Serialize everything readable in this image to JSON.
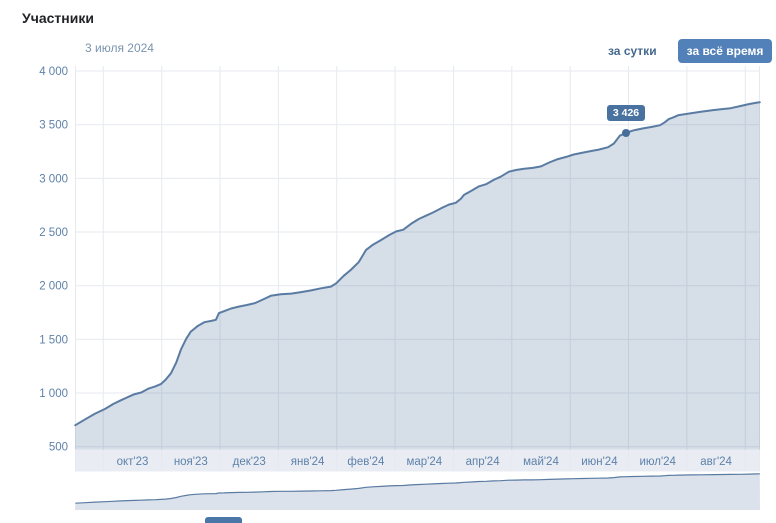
{
  "header": {
    "title": "Участники"
  },
  "controls": {
    "hover_date": "3 июля 2024",
    "range_day_label": "за сутки",
    "range_all_label": "за всё время",
    "selected_range": "за всё время"
  },
  "colors": {
    "accent_button": "#5181b8",
    "line": "#5a7ba2",
    "area_fill": "rgba(90,123,162,0.25)",
    "minimap_fill": "rgba(90,123,162,0.22)",
    "axis_label": "#5e81a9",
    "grid": "#e6e9ef",
    "strip_bg": "#e9edf3",
    "tooltip_bg": "#4a72a0",
    "date_label": "#7b93af",
    "link": "#45688e"
  },
  "chart_data": {
    "type": "area",
    "title": "Участники",
    "legend": [
      "Участники"
    ],
    "x_axis": {
      "tick_labels": [
        "окт'23",
        "ноя'23",
        "дек'23",
        "янв'24",
        "фев'24",
        "мар'24",
        "апр'24",
        "май'24",
        "июн'24",
        "июл'24",
        "авг'24"
      ],
      "unit": "t = months since 1 Oct 2023",
      "range_t": [
        -0.48,
        11.25
      ],
      "grid": true
    },
    "y_axis": {
      "ticks": [
        4000,
        3500,
        3000,
        2500,
        2000,
        1500,
        1000,
        500
      ],
      "tick_labels": [
        "4 000",
        "3 500",
        "3 000",
        "2 500",
        "2 000",
        "1 500",
        "1 000",
        "500"
      ],
      "range": [
        450,
        4000
      ],
      "grid": true
    },
    "series": [
      {
        "name": "Участники",
        "points": [
          [
            -0.48,
            700
          ],
          [
            -0.31,
            755
          ],
          [
            -0.14,
            808
          ],
          [
            0.03,
            852
          ],
          [
            0.17,
            898
          ],
          [
            0.3,
            932
          ],
          [
            0.42,
            962
          ],
          [
            0.54,
            990
          ],
          [
            0.65,
            1005
          ],
          [
            0.77,
            1040
          ],
          [
            0.89,
            1062
          ],
          [
            0.99,
            1085
          ],
          [
            1.07,
            1125
          ],
          [
            1.16,
            1185
          ],
          [
            1.25,
            1285
          ],
          [
            1.33,
            1405
          ],
          [
            1.42,
            1505
          ],
          [
            1.5,
            1572
          ],
          [
            1.61,
            1622
          ],
          [
            1.73,
            1660
          ],
          [
            1.85,
            1672
          ],
          [
            1.93,
            1682
          ],
          [
            1.98,
            1745
          ],
          [
            2.07,
            1762
          ],
          [
            2.19,
            1788
          ],
          [
            2.33,
            1806
          ],
          [
            2.46,
            1820
          ],
          [
            2.6,
            1838
          ],
          [
            2.74,
            1872
          ],
          [
            2.87,
            1906
          ],
          [
            3.04,
            1920
          ],
          [
            3.22,
            1926
          ],
          [
            3.39,
            1940
          ],
          [
            3.56,
            1956
          ],
          [
            3.73,
            1976
          ],
          [
            3.9,
            1992
          ],
          [
            3.99,
            2022
          ],
          [
            4.12,
            2092
          ],
          [
            4.24,
            2146
          ],
          [
            4.38,
            2222
          ],
          [
            4.5,
            2332
          ],
          [
            4.62,
            2382
          ],
          [
            4.76,
            2426
          ],
          [
            4.9,
            2472
          ],
          [
            5.02,
            2506
          ],
          [
            5.14,
            2522
          ],
          [
            5.27,
            2576
          ],
          [
            5.41,
            2622
          ],
          [
            5.53,
            2652
          ],
          [
            5.65,
            2682
          ],
          [
            5.79,
            2722
          ],
          [
            5.92,
            2756
          ],
          [
            6.04,
            2772
          ],
          [
            6.13,
            2812
          ],
          [
            6.18,
            2846
          ],
          [
            6.3,
            2882
          ],
          [
            6.44,
            2926
          ],
          [
            6.56,
            2946
          ],
          [
            6.69,
            2986
          ],
          [
            6.81,
            3016
          ],
          [
            6.95,
            3062
          ],
          [
            7.07,
            3078
          ],
          [
            7.21,
            3090
          ],
          [
            7.36,
            3098
          ],
          [
            7.5,
            3112
          ],
          [
            7.64,
            3148
          ],
          [
            7.79,
            3180
          ],
          [
            7.93,
            3200
          ],
          [
            8.06,
            3222
          ],
          [
            8.22,
            3240
          ],
          [
            8.36,
            3255
          ],
          [
            8.49,
            3268
          ],
          [
            8.65,
            3290
          ],
          [
            8.75,
            3325
          ],
          [
            8.85,
            3398
          ],
          [
            8.96,
            3426
          ],
          [
            9.09,
            3448
          ],
          [
            9.25,
            3466
          ],
          [
            9.4,
            3480
          ],
          [
            9.54,
            3495
          ],
          [
            9.62,
            3522
          ],
          [
            9.69,
            3552
          ],
          [
            9.76,
            3566
          ],
          [
            9.86,
            3590
          ],
          [
            10.07,
            3606
          ],
          [
            10.24,
            3620
          ],
          [
            10.45,
            3636
          ],
          [
            10.62,
            3646
          ],
          [
            10.75,
            3654
          ],
          [
            10.92,
            3674
          ],
          [
            11.06,
            3692
          ],
          [
            11.2,
            3706
          ],
          [
            11.25,
            3710
          ]
        ]
      }
    ],
    "tooltip": {
      "date": "3 июля 2024",
      "value": 3426,
      "label": "3 426",
      "t": 8.96
    },
    "minimap": {
      "present": true,
      "value_range": [
        0,
        3700
      ]
    }
  }
}
